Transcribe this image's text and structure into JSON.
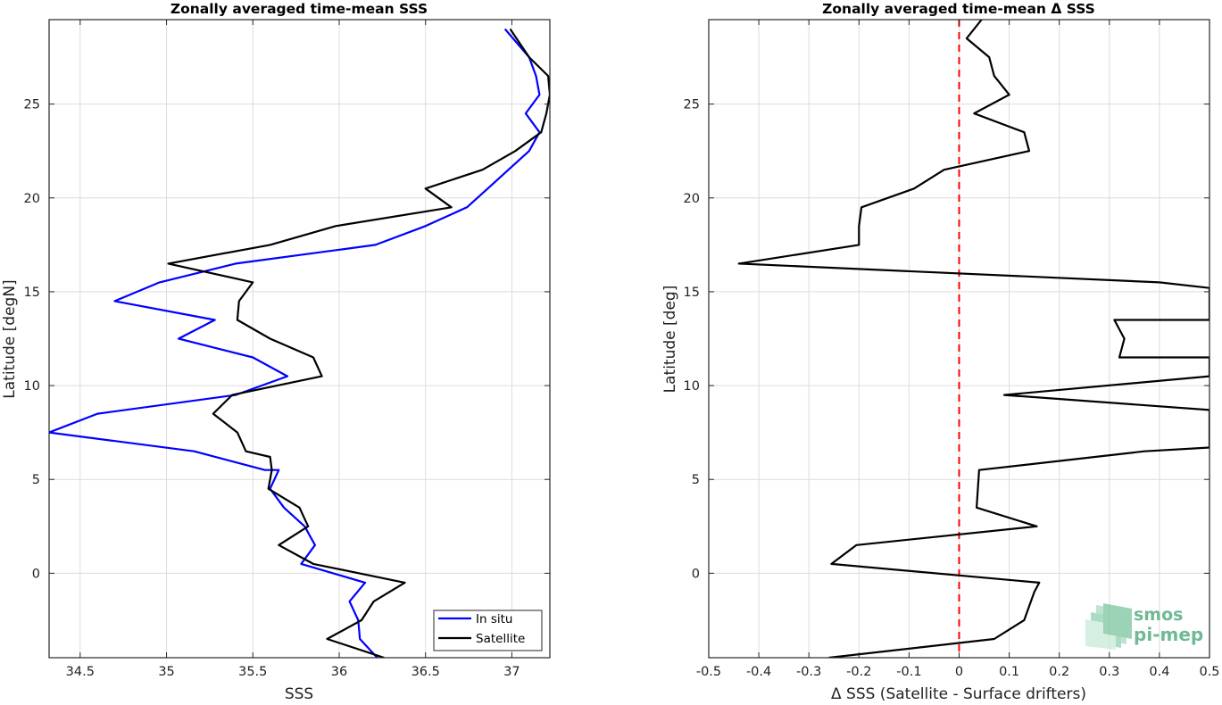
{
  "chart_data": [
    {
      "type": "line",
      "title": "Zonally averaged time-mean SSS",
      "xlabel": "SSS",
      "ylabel": "Latitude [degN]",
      "xlim": [
        34.32,
        37.22
      ],
      "ylim": [
        -4.5,
        29.5
      ],
      "xticks": [
        34.5,
        35,
        35.5,
        36,
        36.5,
        37
      ],
      "xtick_labels": [
        "34.5",
        "35",
        "35.5",
        "36",
        "36.5",
        "37"
      ],
      "yticks": [
        0,
        5,
        10,
        15,
        20,
        25
      ],
      "ytick_labels": [
        "0",
        "5",
        "10",
        "15",
        "20",
        "25"
      ],
      "grid": true,
      "legend_position": "bottom-right",
      "series": [
        {
          "name": "In situ",
          "color": "#0000ff",
          "x": [
            36.22,
            36.12,
            36.11,
            36.06,
            36.15,
            35.78,
            35.86,
            35.8,
            35.68,
            35.6,
            35.65,
            35.57,
            35.16,
            34.32,
            34.6,
            35.4,
            35.7,
            35.5,
            35.07,
            35.28,
            34.7,
            34.96,
            35.4,
            36.21,
            36.5,
            36.74,
            36.86,
            36.98,
            37.1,
            37.16,
            37.08,
            37.16,
            37.14,
            37.1,
            36.96
          ],
          "y": [
            -4.5,
            -3.5,
            -2.5,
            -1.5,
            -0.5,
            0.5,
            1.5,
            2.5,
            3.5,
            4.5,
            5.5,
            5.5,
            6.5,
            7.5,
            8.5,
            9.5,
            10.5,
            11.5,
            12.5,
            13.5,
            14.5,
            15.5,
            16.5,
            17.5,
            18.5,
            19.5,
            20.5,
            21.5,
            22.5,
            23.5,
            24.5,
            25.5,
            26.5,
            27.5,
            29.0
          ]
        },
        {
          "name": "Satellite",
          "color": "#000000",
          "x": [
            36.26,
            35.93,
            36.13,
            36.2,
            36.38,
            35.85,
            35.65,
            35.82,
            35.77,
            35.59,
            35.61,
            35.6,
            35.46,
            35.41,
            35.27,
            35.38,
            35.9,
            35.85,
            35.6,
            35.41,
            35.42,
            35.5,
            35.01,
            35.6,
            35.98,
            36.65,
            36.5,
            36.83,
            37.02,
            37.17,
            37.2,
            37.22,
            37.21,
            37.1,
            36.99
          ],
          "y": [
            -4.5,
            -3.5,
            -2.5,
            -1.5,
            -0.5,
            0.5,
            1.5,
            2.5,
            3.5,
            4.5,
            5.5,
            6.2,
            6.5,
            7.5,
            8.5,
            9.5,
            10.5,
            11.5,
            12.5,
            13.5,
            14.5,
            15.5,
            16.5,
            17.5,
            18.5,
            19.5,
            20.5,
            21.5,
            22.5,
            23.5,
            24.5,
            25.5,
            26.5,
            27.5,
            29.0
          ]
        }
      ]
    },
    {
      "type": "line",
      "title": "Zonally averaged time-mean Δ SSS",
      "xlabel": "Δ SSS (Satellite - Surface drifters)",
      "ylabel": "Latitude [deg]",
      "xlim": [
        -0.5,
        0.5
      ],
      "ylim": [
        -4.5,
        29.5
      ],
      "xticks": [
        -0.5,
        -0.4,
        -0.3,
        -0.2,
        -0.1,
        0,
        0.1,
        0.2,
        0.3,
        0.4,
        0.5
      ],
      "xtick_labels": [
        "-0.5",
        "-0.4",
        "-0.3",
        "-0.2",
        "-0.1",
        "0",
        "0.1",
        "0.2",
        "0.3",
        "0.4",
        "0.5"
      ],
      "yticks": [
        0,
        5,
        10,
        15,
        20,
        25
      ],
      "ytick_labels": [
        "0",
        "5",
        "10",
        "15",
        "20",
        "25"
      ],
      "grid": true,
      "reference_line": {
        "x": 0,
        "color": "#ff0000",
        "style": "dashed"
      },
      "series": [
        {
          "color": "#000000",
          "x": [
            -0.26,
            0.07,
            0.13,
            0.15,
            0.16,
            -0.255,
            -0.205,
            0.155,
            0.035,
            0.04,
            0.37,
            0.5,
            0.5,
            0.5,
            0.09,
            0.5,
            0.5,
            0.32,
            0.33,
            0.31,
            0.5,
            0.5,
            0.5,
            0.4,
            -0.44,
            -0.2,
            -0.2,
            -0.195,
            -0.09,
            -0.03,
            0.14,
            0.13,
            0.03,
            0.1,
            0.07,
            0.06,
            0.015,
            0.045
          ],
          "y": [
            -4.5,
            -3.5,
            -2.5,
            -1.0,
            -0.5,
            0.5,
            1.5,
            2.5,
            3.5,
            5.5,
            6.5,
            6.7,
            7.5,
            8.7,
            9.5,
            10.5,
            11.5,
            11.5,
            12.5,
            13.5,
            13.5,
            14.0,
            15.2,
            15.5,
            16.5,
            17.5,
            18.5,
            19.5,
            20.5,
            21.5,
            22.5,
            23.5,
            24.5,
            25.5,
            26.5,
            27.5,
            28.5,
            29.5
          ]
        }
      ]
    }
  ],
  "logo": {
    "line1": "smos",
    "line2": "pi-mep",
    "color": "#6fb995"
  }
}
